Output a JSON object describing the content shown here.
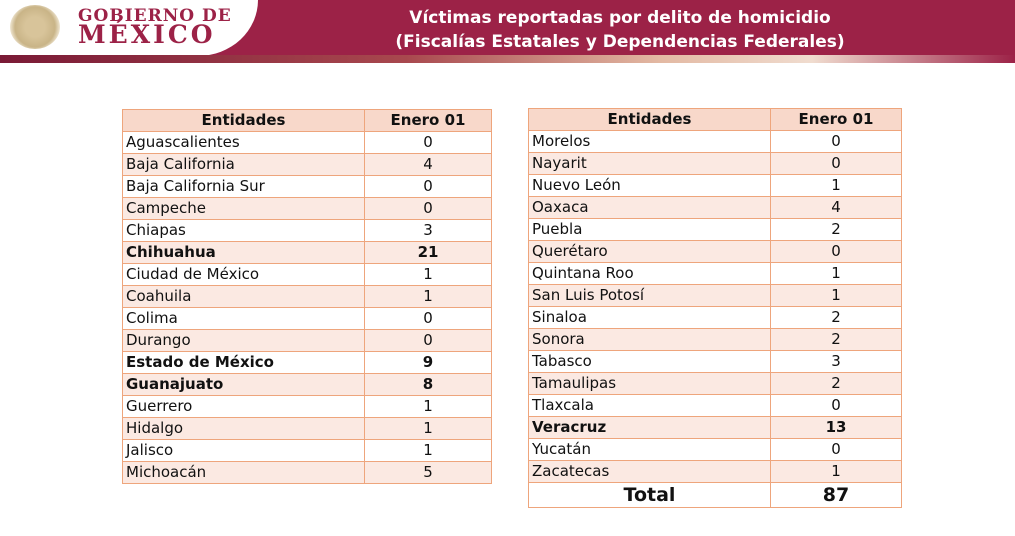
{
  "header": {
    "logo_line1": "GOBIERNO DE",
    "logo_line2": "MÉXICO",
    "title_line1": "Víctimas reportadas por delito de homicidio",
    "title_line2": "(Fiscalías Estatales y Dependencias Federales)",
    "accent": "#9c2247"
  },
  "columns": {
    "entity": "Entidades",
    "date": "Enero 01"
  },
  "left_table": [
    {
      "name": "Aguascalientes",
      "value": "0",
      "bold": false
    },
    {
      "name": "Baja California",
      "value": "4",
      "bold": false
    },
    {
      "name": "Baja California Sur",
      "value": "0",
      "bold": false
    },
    {
      "name": "Campeche",
      "value": "0",
      "bold": false
    },
    {
      "name": "Chiapas",
      "value": "3",
      "bold": false
    },
    {
      "name": "Chihuahua",
      "value": "21",
      "bold": true
    },
    {
      "name": "Ciudad de México",
      "value": "1",
      "bold": false
    },
    {
      "name": "Coahuila",
      "value": "1",
      "bold": false
    },
    {
      "name": "Colima",
      "value": "0",
      "bold": false
    },
    {
      "name": "Durango",
      "value": "0",
      "bold": false
    },
    {
      "name": "Estado de México",
      "value": "9",
      "bold": true
    },
    {
      "name": "Guanajuato",
      "value": "8",
      "bold": true
    },
    {
      "name": "Guerrero",
      "value": "1",
      "bold": false
    },
    {
      "name": "Hidalgo",
      "value": "1",
      "bold": false
    },
    {
      "name": "Jalisco",
      "value": "1",
      "bold": false
    },
    {
      "name": "Michoacán",
      "value": "5",
      "bold": false
    }
  ],
  "right_table": [
    {
      "name": "Morelos",
      "value": "0",
      "bold": false
    },
    {
      "name": "Nayarit",
      "value": "0",
      "bold": false
    },
    {
      "name": "Nuevo León",
      "value": "1",
      "bold": false
    },
    {
      "name": "Oaxaca",
      "value": "4",
      "bold": false
    },
    {
      "name": "Puebla",
      "value": "2",
      "bold": false
    },
    {
      "name": "Querétaro",
      "value": "0",
      "bold": false
    },
    {
      "name": "Quintana Roo",
      "value": "1",
      "bold": false
    },
    {
      "name": "San Luis Potosí",
      "value": "1",
      "bold": false
    },
    {
      "name": "Sinaloa",
      "value": "2",
      "bold": false
    },
    {
      "name": "Sonora",
      "value": "2",
      "bold": false
    },
    {
      "name": "Tabasco",
      "value": "3",
      "bold": false
    },
    {
      "name": "Tamaulipas",
      "value": "2",
      "bold": false
    },
    {
      "name": "Tlaxcala",
      "value": "0",
      "bold": false
    },
    {
      "name": "Veracruz",
      "value": "13",
      "bold": true
    },
    {
      "name": "Yucatán",
      "value": "0",
      "bold": false
    },
    {
      "name": "Zacatecas",
      "value": "1",
      "bold": false
    }
  ],
  "total": {
    "label": "Total",
    "value": "87"
  }
}
